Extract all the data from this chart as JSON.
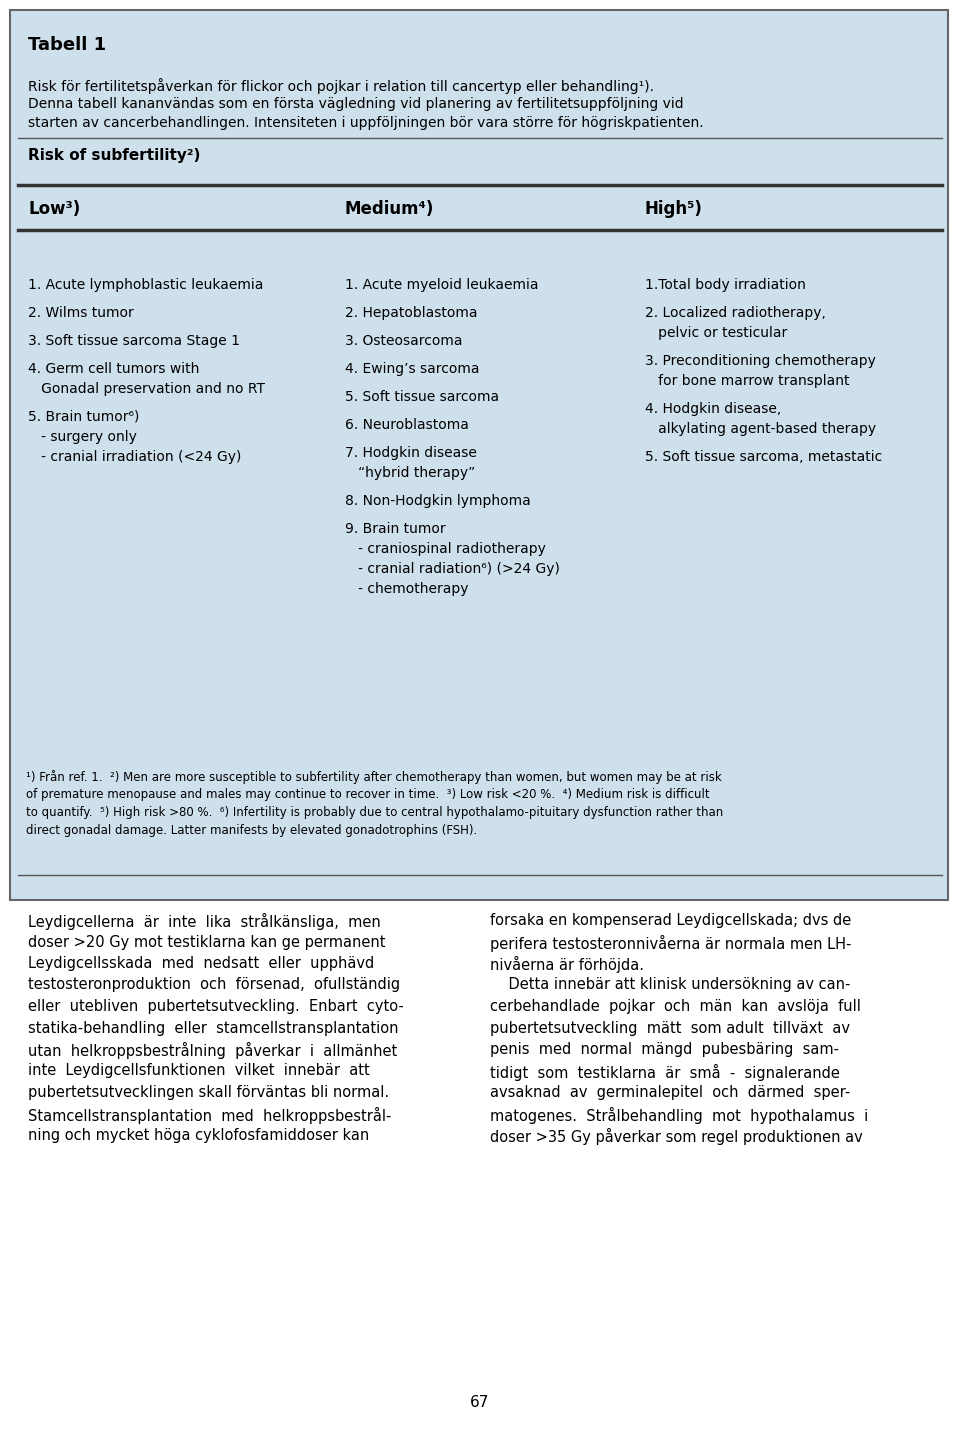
{
  "bg_color": "#cfe0ed",
  "white_bg": "#ffffff",
  "table_bg": "#cfe0ed",
  "border_color": "#555555",
  "title": "Tabell 1",
  "subtitle_line1": "Risk för fertilitetspåverkan för flickor och pojkar i relation till cancertyp eller behandling¹).",
  "subtitle_line2": "Denna tabell kananvändas som en första vägledning vid planering av fertilitetsuppföljning vid",
  "subtitle_line3": "starten av cancerbehandlingen. Intensiteten i uppföljningen bör vara större för högriskpatienten.",
  "risk_label": "Risk of subfertility²)",
  "col_headers": [
    "Low³)",
    "Medium⁴)",
    "High⁵)"
  ],
  "low_items": [
    [
      "1. Acute lymphoblastic leukaemia",
      false
    ],
    [
      "2. Wilms tumor",
      false
    ],
    [
      "3. Soft tissue sarcoma Stage 1",
      false
    ],
    [
      "4. Germ cell tumors with",
      false
    ],
    [
      "   Gonadal preservation and no RT",
      true
    ],
    [
      "5. Brain tumor⁶)",
      false
    ],
    [
      "   - surgery only",
      true
    ],
    [
      "   - cranial irradiation (<24 Gy)",
      true
    ]
  ],
  "medium_items": [
    [
      "1. Acute myeloid leukaemia",
      false
    ],
    [
      "2. Hepatoblastoma",
      false
    ],
    [
      "3. Osteosarcoma",
      false
    ],
    [
      "4. Ewingʼs sarcoma",
      false
    ],
    [
      "5. Soft tissue sarcoma",
      false
    ],
    [
      "6. Neuroblastoma",
      false
    ],
    [
      "7. Hodgkin disease",
      false
    ],
    [
      "   “hybrid therapy”",
      true
    ],
    [
      "8. Non-Hodgkin lymphoma",
      false
    ],
    [
      "9. Brain tumor",
      false
    ],
    [
      "   - craniospinal radiotherapy",
      true
    ],
    [
      "   - cranial radiation⁶) (>24 Gy)",
      true
    ],
    [
      "   - chemotherapy",
      true
    ]
  ],
  "high_items": [
    [
      "1.Total body irradiation",
      false
    ],
    [
      "2. Localized radiotherapy,",
      false
    ],
    [
      "   pelvic or testicular",
      true
    ],
    [
      "3. Preconditioning chemotherapy",
      false
    ],
    [
      "   for bone marrow transplant",
      true
    ],
    [
      "4. Hodgkin disease,",
      false
    ],
    [
      "   alkylating agent-based therapy",
      true
    ],
    [
      "5. Soft tissue sarcoma, metastatic",
      false
    ]
  ],
  "footnote_lines": [
    "¹) Från ref. 1.  ²) Men are more susceptible to subfertility after chemotherapy than women, but women may be at risk",
    "of premature menopause and males may continue to recover in time.  ³) Low risk <20 %.  ⁴) Medium risk is difficult",
    "to quantify.  ⁵) High risk >80 %.  ⁶) Infertility is probably due to central hypothalamo-pituitary dysfunction rather than",
    "direct gonadal damage. Latter manifests by elevated gonadotrophins (FSH)."
  ],
  "bottom_text_left": [
    "Leydigcellerna  är  inte  lika  strålkänsliga,  men",
    "doser >20 Gy mot testiklarna kan ge permanent",
    "Leydigcellsskada  med  nedsatt  eller  upphävd",
    "testosteronproduktion  och  försenad,  ofullständig",
    "eller  utebliven  pubertetsutveckling.  Enbart  cyto-",
    "statika-behandling  eller  stamcellstransplantation",
    "utan  helkroppsbestrålning  påverkar  i  allmänhet",
    "inte  Leydigcellsfunktionen  vilket  innebär  att",
    "pubertetsutvecklingen skall förväntas bli normal.",
    "Stamcellstransplantation  med  helkroppsbestrål-",
    "ning och mycket höga cyklofosfamiddoser kan"
  ],
  "bottom_text_right": [
    "forsaka en kompenserad Leydigcellskada; dvs de",
    "perifera testosteronnivåerna är normala men LH-",
    "nivåerna är förhöjda.",
    "    Detta innebär att klinisk undersökning av can-",
    "cerbehandlade  pojkar  och  män  kan  avslöja  full",
    "pubertetsutveckling  mätt  som adult  tillväxt  av",
    "penis  med  normal  mängd  pubesbäring  sam-",
    "tidigt  som  testiklarna  är  små  -  signalerande",
    "avsaknad  av  germinalepitel  och  därmed  sper-",
    "matogenes.  Strålbehandling  mot  hypothalamus  i",
    "doser >35 Gy påverkar som regel produktionen av"
  ],
  "page_number": "67"
}
